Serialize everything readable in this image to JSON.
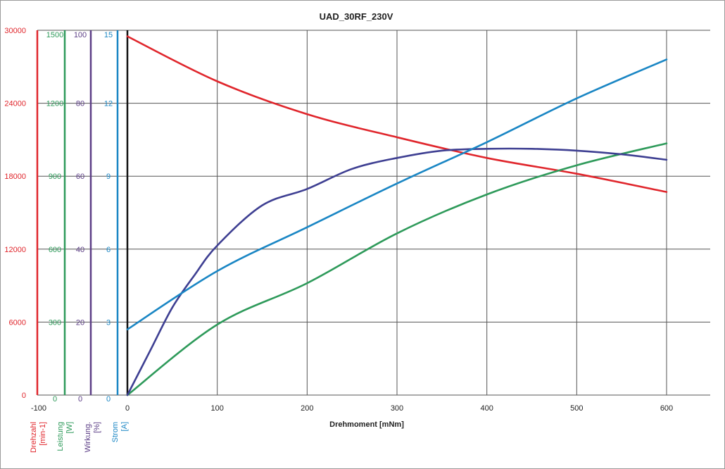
{
  "chart_data": {
    "type": "line",
    "title": "UAD_30RF_230V",
    "xlabel": "Drehmoment [mNm]",
    "x_ticks": [
      "-100",
      "0",
      "100",
      "200",
      "300",
      "400",
      "500",
      "600"
    ],
    "xlim": [
      -100,
      650
    ],
    "grid": true,
    "y_axes": [
      {
        "key": "drehzahl",
        "name": "Drehzahl",
        "unit": "[min-1]",
        "color": "#e0262c",
        "range": [
          0,
          30000
        ],
        "ticks": [
          "0",
          "6000",
          "12000",
          "18000",
          "24000",
          "30000"
        ]
      },
      {
        "key": "leistung",
        "name": "Leistung",
        "unit": "[W]",
        "color": "#2e9a5a",
        "range": [
          0,
          1500
        ],
        "ticks": [
          "0",
          "300",
          "600",
          "900",
          "1200",
          "1500"
        ]
      },
      {
        "key": "wirkung",
        "name": "Wirkung.",
        "unit": "[%]",
        "color": "#5c3e86",
        "range": [
          0,
          100
        ],
        "ticks": [
          "0",
          "20",
          "40",
          "60",
          "80",
          "100"
        ]
      },
      {
        "key": "strom",
        "name": "Strom",
        "unit": "[A]",
        "color": "#1a86c4",
        "range": [
          0,
          15
        ],
        "ticks": [
          "0",
          "3",
          "6",
          "9",
          "12",
          "15"
        ]
      }
    ],
    "series": [
      {
        "axis": "drehzahl",
        "color": "#e0262c",
        "points": [
          [
            0,
            29500
          ],
          [
            100,
            25800
          ],
          [
            200,
            23100
          ],
          [
            300,
            21200
          ],
          [
            400,
            19500
          ],
          [
            500,
            18200
          ],
          [
            600,
            16700
          ]
        ]
      },
      {
        "axis": "leistung",
        "color": "#2e9a5a",
        "points": [
          [
            0,
            0
          ],
          [
            100,
            290
          ],
          [
            200,
            460
          ],
          [
            300,
            665
          ],
          [
            400,
            825
          ],
          [
            500,
            945
          ],
          [
            600,
            1035
          ]
        ]
      },
      {
        "axis": "wirkung",
        "color": "#3e3f92",
        "points": [
          [
            0,
            0
          ],
          [
            25,
            12
          ],
          [
            50,
            24
          ],
          [
            75,
            33
          ],
          [
            100,
            41
          ],
          [
            150,
            52
          ],
          [
            200,
            56.5
          ],
          [
            250,
            62
          ],
          [
            300,
            65
          ],
          [
            350,
            67
          ],
          [
            400,
            67.5
          ],
          [
            450,
            67.5
          ],
          [
            500,
            67
          ],
          [
            550,
            66
          ],
          [
            600,
            64.5
          ]
        ]
      },
      {
        "axis": "strom",
        "color": "#1a86c4",
        "points": [
          [
            0,
            2.7
          ],
          [
            100,
            5.1
          ],
          [
            200,
            6.9
          ],
          [
            300,
            8.7
          ],
          [
            400,
            10.4
          ],
          [
            500,
            12.2
          ],
          [
            600,
            13.8
          ]
        ]
      }
    ]
  }
}
